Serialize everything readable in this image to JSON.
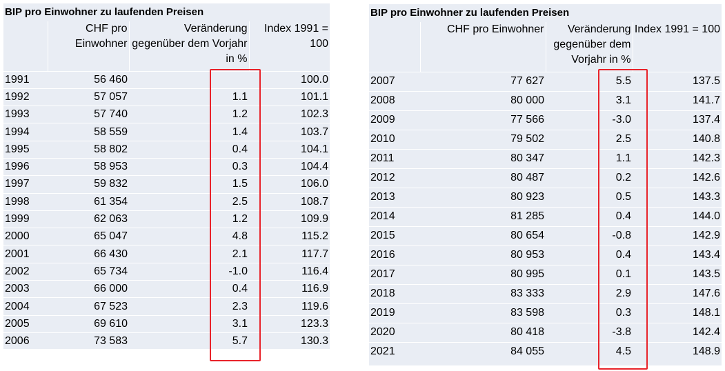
{
  "left": {
    "title": "BIP pro Einwohner zu laufenden Preisen",
    "headers": [
      "",
      "CHF pro Einwohner",
      "Veränderung gegenüber dem Vorjahr in %",
      "Index 1991 = 100"
    ],
    "rows": [
      [
        "1991",
        "56 460",
        "",
        "100.0"
      ],
      [
        "1992",
        "57 057",
        "1.1",
        "101.1"
      ],
      [
        "1993",
        "57 740",
        "1.2",
        "102.3"
      ],
      [
        "1994",
        "58 559",
        "1.4",
        "103.7"
      ],
      [
        "1995",
        "58 802",
        "0.4",
        "104.1"
      ],
      [
        "1996",
        "58 953",
        "0.3",
        "104.4"
      ],
      [
        "1997",
        "59 832",
        "1.5",
        "106.0"
      ],
      [
        "1998",
        "61 354",
        "2.5",
        "108.7"
      ],
      [
        "1999",
        "62 063",
        "1.2",
        "109.9"
      ],
      [
        "2000",
        "65 047",
        "4.8",
        "115.2"
      ],
      [
        "2001",
        "66 430",
        "2.1",
        "117.7"
      ],
      [
        "2002",
        "65 734",
        "-1.0",
        "116.4"
      ],
      [
        "2003",
        "66 000",
        "0.4",
        "116.9"
      ],
      [
        "2004",
        "67 523",
        "2.3",
        "119.6"
      ],
      [
        "2005",
        "69 610",
        "3.1",
        "123.3"
      ],
      [
        "2006",
        "73 583",
        "5.7",
        "130.3"
      ]
    ]
  },
  "right": {
    "title": "BIP pro Einwohner zu laufenden Preisen",
    "headers": [
      "",
      "CHF pro Einwohner",
      "Veränderung gegenüber dem Vorjahr in %",
      "Index 1991 = 100"
    ],
    "rows": [
      [
        "2007",
        "77 627",
        "5.5",
        "137.5"
      ],
      [
        "2008",
        "80 000",
        "3.1",
        "141.7"
      ],
      [
        "2009",
        "77 566",
        "-3.0",
        "137.4"
      ],
      [
        "2010",
        "79 502",
        "2.5",
        "140.8"
      ],
      [
        "2011",
        "80 347",
        "1.1",
        "142.3"
      ],
      [
        "2012",
        "80 487",
        "0.2",
        "142.6"
      ],
      [
        "2013",
        "80 923",
        "0.5",
        "143.3"
      ],
      [
        "2014",
        "81 285",
        "0.4",
        "144.0"
      ],
      [
        "2015",
        "80 654",
        "-0.8",
        "142.9"
      ],
      [
        "2016",
        "80 953",
        "0.4",
        "143.4"
      ],
      [
        "2017",
        "80 995",
        "0.1",
        "143.5"
      ],
      [
        "2018",
        "83 333",
        "2.9",
        "147.6"
      ],
      [
        "2019",
        "83 598",
        "0.3",
        "148.1"
      ],
      [
        "2020",
        "80 418",
        "-3.8",
        "142.4"
      ],
      [
        "2021",
        "84 055",
        "4.5",
        "148.9"
      ]
    ]
  },
  "highlight_color": "#e8232a"
}
